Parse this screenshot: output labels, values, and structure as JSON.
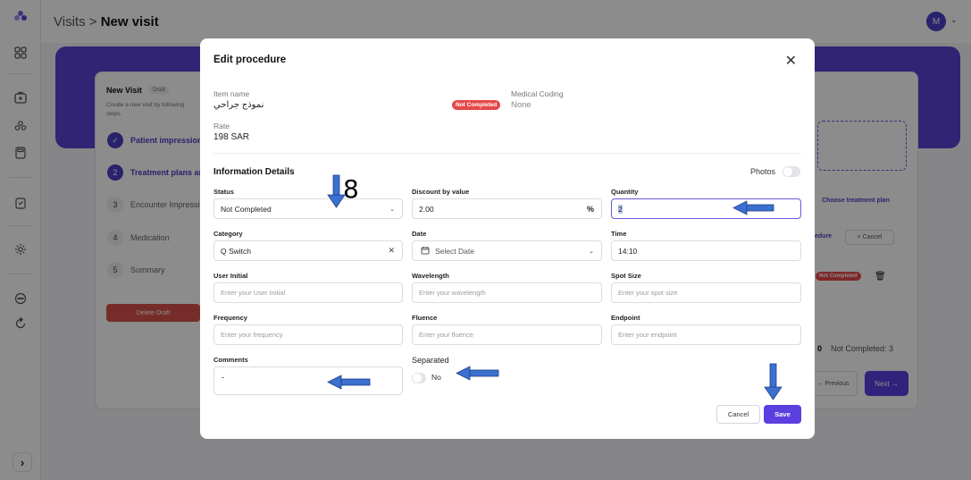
{
  "header": {
    "breadcrumb_root": "Visits",
    "breadcrumb_sep": ">",
    "breadcrumb_current": "New visit",
    "avatar_initial": "M"
  },
  "background": {
    "card_title": "New Visit",
    "draft_badge": "Draft",
    "card_subtitle_1": "Create a new visit by following",
    "card_subtitle_2": "steps.",
    "steps": [
      {
        "num": "✓",
        "label": "Patient impressions"
      },
      {
        "num": "2",
        "label": "Treatment plans an"
      },
      {
        "num": "3",
        "label": "Encounter Impressi"
      },
      {
        "num": "4",
        "label": "Medication"
      },
      {
        "num": "5",
        "label": "Summary"
      }
    ],
    "delete_draft": "Delete Draft",
    "choose_treatment_plan": "Choose treatment plan",
    "procedure_link": "edure",
    "cancel_small": "× Cancel",
    "not_completed_badge": "Not Completed",
    "counts_zero": "0",
    "counts_not_completed": "Not Completed: 3",
    "previous": "← Previous",
    "next": "Next →"
  },
  "modal": {
    "title": "Edit procedure",
    "item_name_label": "Item name",
    "item_name_value": "نموذج جراحي",
    "status_badge": "Not Completed",
    "medical_coding_label": "Medical Coding",
    "medical_coding_value": "None",
    "rate_label": "Rate",
    "rate_value": "198 SAR",
    "section_title": "Information Details",
    "photos_label": "Photos",
    "fields": {
      "status": {
        "label": "Status",
        "value": "Not Completed"
      },
      "discount": {
        "label": "Discount by value",
        "value": "2.00",
        "suffix": "%"
      },
      "quantity": {
        "label": "Quantity",
        "value": "2"
      },
      "category": {
        "label": "Category",
        "value": "Q Switch"
      },
      "date": {
        "label": "Date",
        "placeholder": "Select Date"
      },
      "time": {
        "label": "Time",
        "value": "14:10"
      },
      "user_initial": {
        "label": "User Initial",
        "placeholder": "Enter your User Initial"
      },
      "wavelength": {
        "label": "Wavelength",
        "placeholder": "Enter your wavelength"
      },
      "spot_size": {
        "label": "Spot Size",
        "placeholder": "Enter your spot size"
      },
      "frequency": {
        "label": "Frequency",
        "placeholder": "Enter your frequency"
      },
      "fluence": {
        "label": "Fluence",
        "placeholder": "Enter your fluence"
      },
      "endpoint": {
        "label": "Endpoint",
        "placeholder": "Enter your endpoint"
      },
      "comments": {
        "label": "Comments",
        "value": "-"
      },
      "separated": {
        "label": "Separated",
        "value": "No"
      }
    },
    "cancel_button": "Cancel",
    "save_button": "Save"
  },
  "annotation": {
    "number": "8",
    "arrow_color": "#3b6fd0"
  }
}
